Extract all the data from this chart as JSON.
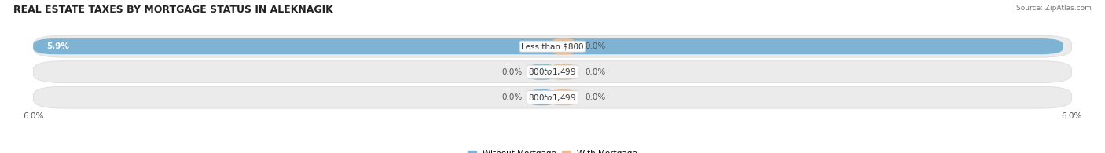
{
  "title": "REAL ESTATE TAXES BY MORTGAGE STATUS IN ALEKNAGIK",
  "source": "Source: ZipAtlas.com",
  "categories": [
    "Less than $800",
    "$800 to $1,499",
    "$800 to $1,499"
  ],
  "without_mortgage": [
    5.9,
    0.0,
    0.0
  ],
  "with_mortgage": [
    0.0,
    0.0,
    0.0
  ],
  "xlim": [
    -6.0,
    6.0
  ],
  "xticklabels_left": "6.0%",
  "xticklabels_right": "6.0%",
  "color_without": "#7fb3d3",
  "color_with": "#e8be96",
  "bar_height": 0.62,
  "background_row": "#ebebeb",
  "background_row_border": "#d8d8d8",
  "background_fig": "#ffffff",
  "label_fontsize": 7.5,
  "title_fontsize": 9,
  "legend_fontsize": 7.5,
  "value_label_inside_color": "#ffffff",
  "value_label_outside_color": "#555555"
}
